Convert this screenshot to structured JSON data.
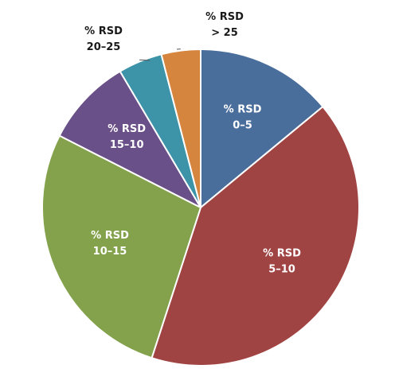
{
  "chart_data": {
    "type": "pie",
    "title": "",
    "slices": [
      {
        "label_line1": "% RSD",
        "label_line2": "0–5",
        "value": 14,
        "color": "#4A6E9C",
        "label_style": "inside"
      },
      {
        "label_line1": "% RSD",
        "label_line2": "5–10",
        "value": 41,
        "color": "#A04443",
        "label_style": "inside"
      },
      {
        "label_line1": "% RSD",
        "label_line2": "10–15",
        "value": 27.5,
        "color": "#83A24B",
        "label_style": "inside"
      },
      {
        "label_line1": "% RSD",
        "label_line2": "15–10",
        "value": 9,
        "color": "#6A5088",
        "label_style": "inside"
      },
      {
        "label_line1": "% RSD",
        "label_line2": "20–25",
        "value": 4.5,
        "color": "#3D93A8",
        "label_style": "outside"
      },
      {
        "label_line1": "% RSD",
        "label_line2": "> 25",
        "value": 4,
        "color": "#D6853F",
        "label_style": "outside"
      }
    ],
    "start": "12 o'clock",
    "direction": "clockwise",
    "legend": "none"
  }
}
